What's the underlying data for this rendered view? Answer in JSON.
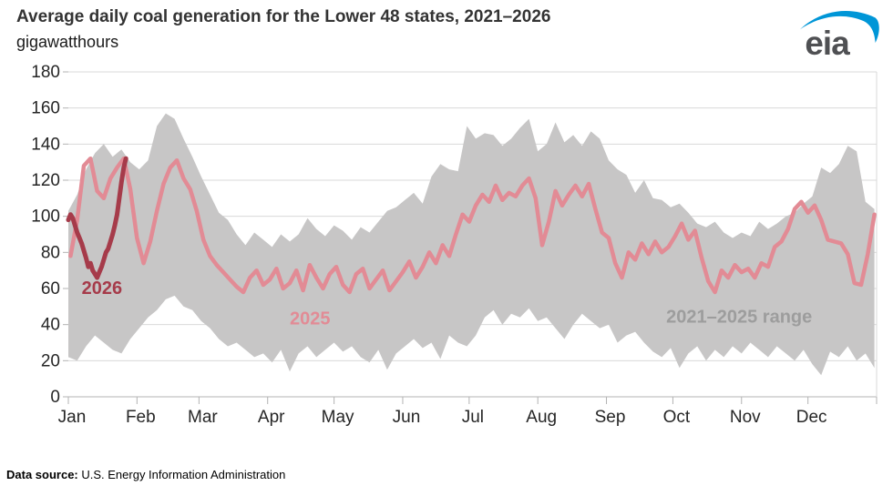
{
  "header": {
    "title": "Average daily coal generation for the Lower 48 states, 2021–2026",
    "unit_label": "gigawatthours"
  },
  "logo": {
    "text": "eia",
    "swoosh_color": "#0096d7",
    "text_color": "#4f5053"
  },
  "footer": {
    "label": "Data source:",
    "text": " U.S. Energy Information Administration"
  },
  "chart_data": {
    "type": "line",
    "title": "Average daily coal generation for the Lower 48 states, 2021–2026",
    "ylabel": "gigawatthours",
    "xlabel": "",
    "ylim": [
      0,
      180
    ],
    "ytick_step": 20,
    "yticks_displayed": [
      "180",
      "160",
      "140",
      "120",
      "100",
      "80",
      "60",
      "40",
      "20",
      "0"
    ],
    "grid": "horizontal",
    "legend_position": "inline-annotations",
    "x_months": [
      "Jan",
      "Feb",
      "Mar",
      "Apr",
      "May",
      "Jun",
      "Jul",
      "Aug",
      "Sep",
      "Oct",
      "Nov",
      "Dec"
    ],
    "month_start_days": [
      1,
      32,
      60,
      91,
      121,
      152,
      182,
      213,
      244,
      274,
      305,
      335
    ],
    "x_end_day": 366,
    "colors": {
      "band": "#c7c6c6",
      "line_2025": "#e28b95",
      "line_2026": "#a63b4a",
      "grid": "#d9d9d9",
      "axis": "#b3b3b3",
      "range_label": "#9d9d9d"
    },
    "annotations": [
      {
        "label": "2026",
        "day": 7,
        "value": 57,
        "color": "#a63b4a",
        "anchor": "start"
      },
      {
        "label": "2025",
        "day": 101,
        "value": 40,
        "color": "#e28b95",
        "anchor": "start"
      },
      {
        "label": "2021–2025 range",
        "day": 271,
        "value": 41,
        "color": "#9d9d9d",
        "anchor": "start"
      }
    ],
    "series": {
      "band_2021_2025": {
        "name": "2021–2025 range",
        "day_start": 1,
        "day_step": 4,
        "max": [
          103,
          112,
          126,
          135,
          140,
          133,
          137,
          130,
          126,
          131,
          150,
          157,
          154,
          143,
          133,
          122,
          112,
          102,
          98,
          90,
          84,
          91,
          87,
          83,
          90,
          86,
          90,
          99,
          93,
          89,
          95,
          92,
          87,
          94,
          91,
          97,
          103,
          105,
          109,
          113,
          107,
          122,
          129,
          126,
          125,
          150,
          143,
          146,
          145,
          139,
          143,
          149,
          154,
          136,
          140,
          152,
          141,
          145,
          139,
          147,
          143,
          131,
          126,
          123,
          113,
          120,
          110,
          109,
          105,
          107,
          102,
          96,
          94,
          97,
          91,
          88,
          91,
          89,
          97,
          93,
          96,
          100,
          102,
          107,
          111,
          127,
          124,
          129,
          139,
          136,
          108,
          104
        ],
        "min": [
          22,
          20,
          28,
          34,
          30,
          26,
          24,
          32,
          38,
          44,
          48,
          54,
          56,
          50,
          48,
          42,
          38,
          32,
          28,
          30,
          26,
          22,
          24,
          19,
          26,
          14,
          24,
          28,
          22,
          26,
          30,
          25,
          28,
          22,
          19,
          26,
          15,
          24,
          28,
          32,
          27,
          30,
          21,
          34,
          30,
          28,
          34,
          44,
          48,
          40,
          46,
          44,
          49,
          42,
          44,
          38,
          32,
          40,
          46,
          42,
          38,
          40,
          30,
          34,
          36,
          30,
          25,
          22,
          27,
          16,
          24,
          28,
          20,
          26,
          22,
          28,
          24,
          30,
          26,
          22,
          28,
          24,
          20,
          26,
          18,
          12,
          25,
          22,
          28,
          20,
          24,
          16
        ]
      },
      "line_2025": {
        "name": "2025",
        "day_start": 2,
        "day_step": 3,
        "values": [
          78,
          98,
          128,
          132,
          114,
          110,
          121,
          127,
          132,
          115,
          88,
          74,
          86,
          103,
          118,
          127,
          131,
          121,
          115,
          103,
          87,
          78,
          73,
          69,
          65,
          61,
          58,
          66,
          70,
          62,
          65,
          71,
          60,
          63,
          70,
          59,
          73,
          66,
          60,
          68,
          72,
          62,
          58,
          68,
          71,
          60,
          65,
          70,
          59,
          64,
          69,
          75,
          66,
          72,
          80,
          74,
          84,
          78,
          90,
          101,
          97,
          106,
          112,
          108,
          117,
          109,
          113,
          111,
          117,
          121,
          110,
          84,
          97,
          114,
          106,
          112,
          117,
          111,
          118,
          104,
          91,
          88,
          74,
          66,
          80,
          76,
          85,
          79,
          86,
          80,
          83,
          89,
          96,
          87,
          92,
          77,
          64,
          58,
          70,
          66,
          73,
          69,
          71,
          66,
          74,
          72,
          83,
          86,
          93,
          104,
          108,
          102,
          106,
          98,
          87,
          86,
          85,
          79,
          63,
          62,
          79,
          101
        ]
      },
      "line_2026": {
        "name": "2026",
        "day_start": 1,
        "day_step": 1,
        "values": [
          98,
          101,
          99,
          95,
          91,
          88,
          85,
          81,
          77,
          72,
          74,
          70,
          68,
          66,
          69,
          72,
          76,
          80,
          82,
          86,
          90,
          95,
          101,
          110,
          119,
          127,
          132
        ]
      }
    }
  }
}
